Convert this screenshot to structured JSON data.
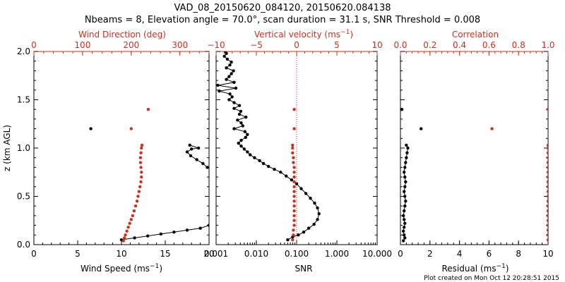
{
  "colors": {
    "black": "#000000",
    "red": "#c8321e"
  },
  "chart_data": {
    "type": "scatter",
    "title_line1": "VAD_08_20150620_084120, 20150620.084138",
    "title_line2": "Nbeams = 8, Elevation angle = 70.0°, scan duration = 31.1 s, SNR Threshold = 0.008",
    "footer": "Plot created on Mon Oct 12 20:28:51 2015",
    "ylabel": "z (km AGL)",
    "ylim": [
      0.0,
      2.0
    ],
    "yticks": [
      "0.0",
      "0.5",
      "1.0",
      "1.5",
      "2.0"
    ],
    "panels": [
      {
        "name": "wind",
        "xlabel": "Wind Speed (ms",
        "xlabel_sup": "−1",
        "xlabel_close": ")",
        "xlim": [
          0,
          20
        ],
        "xticks": [
          "0",
          "5",
          "10",
          "15",
          "20"
        ],
        "top_label": "Wind Direction (deg",
        "top_label_close": ")",
        "top_lim": [
          0,
          360
        ],
        "top_ticks": [
          "0",
          "100",
          "200",
          "300"
        ],
        "speed": [
          [
            10.0,
            0.05
          ],
          [
            11.5,
            0.07
          ],
          [
            13.0,
            0.09
          ],
          [
            14.5,
            0.11
          ],
          [
            16.0,
            0.13
          ],
          [
            17.5,
            0.15
          ],
          [
            19.0,
            0.17
          ],
          [
            20.0,
            0.2
          ],
          [
            19.8,
            0.8
          ],
          [
            19.3,
            0.84
          ],
          [
            18.6,
            0.88
          ],
          [
            17.9,
            0.92
          ],
          [
            17.5,
            0.96
          ],
          [
            18.0,
            0.99
          ],
          [
            18.8,
            1.0
          ],
          [
            17.8,
            1.03
          ],
          [
            6.5,
            1.2
          ]
        ],
        "direction": [
          [
            184,
            0.04
          ],
          [
            186,
            0.07
          ],
          [
            188,
            0.1
          ],
          [
            191,
            0.14
          ],
          [
            194,
            0.18
          ],
          [
            197,
            0.22
          ],
          [
            200,
            0.26
          ],
          [
            203,
            0.3
          ],
          [
            206,
            0.35
          ],
          [
            209,
            0.4
          ],
          [
            212,
            0.45
          ],
          [
            214,
            0.5
          ],
          [
            216,
            0.55
          ],
          [
            218,
            0.6
          ],
          [
            220,
            0.65
          ],
          [
            221,
            0.7
          ],
          [
            221,
            0.75
          ],
          [
            220,
            0.8
          ],
          [
            219,
            0.85
          ],
          [
            219,
            0.9
          ],
          [
            220,
            0.95
          ],
          [
            221,
            1.0
          ],
          [
            222,
            1.03
          ],
          [
            200,
            1.2
          ],
          [
            235,
            1.4
          ]
        ]
      },
      {
        "name": "snr",
        "xlabel": "SNR",
        "xlim": [
          0.001,
          10.0
        ],
        "xscale": "log",
        "xticks": [
          "0.001",
          "0.010",
          "0.100",
          "1.000",
          "10.000"
        ],
        "top_label": "Vertical velocity (ms",
        "top_label_sup": "−1",
        "top_label_close": ")",
        "top_lim": [
          -10,
          10
        ],
        "top_ticks": [
          "−10",
          "−5",
          "0",
          "5",
          "10"
        ],
        "snr": [
          [
            0.06,
            0.05
          ],
          [
            0.08,
            0.08
          ],
          [
            0.11,
            0.1
          ],
          [
            0.15,
            0.13
          ],
          [
            0.2,
            0.17
          ],
          [
            0.27,
            0.21
          ],
          [
            0.33,
            0.26
          ],
          [
            0.36,
            0.32
          ],
          [
            0.33,
            0.38
          ],
          [
            0.28,
            0.43
          ],
          [
            0.22,
            0.48
          ],
          [
            0.17,
            0.53
          ],
          [
            0.13,
            0.58
          ],
          [
            0.1,
            0.63
          ],
          [
            0.075,
            0.67
          ],
          [
            0.055,
            0.71
          ],
          [
            0.04,
            0.75
          ],
          [
            0.028,
            0.78
          ],
          [
            0.02,
            0.81
          ],
          [
            0.015,
            0.84
          ],
          [
            0.012,
            0.87
          ],
          [
            0.009,
            0.9
          ],
          [
            0.007,
            0.93
          ],
          [
            0.006,
            0.96
          ],
          [
            0.005,
            0.99
          ],
          [
            0.0042,
            1.02
          ],
          [
            0.0036,
            1.05
          ],
          [
            0.0042,
            1.08
          ],
          [
            0.0054,
            1.11
          ],
          [
            0.006,
            1.14
          ],
          [
            0.0052,
            1.17
          ],
          [
            0.0028,
            1.2
          ],
          [
            0.0046,
            1.23
          ],
          [
            0.0042,
            1.26
          ],
          [
            0.0034,
            1.29
          ],
          [
            0.0055,
            1.32
          ],
          [
            0.0038,
            1.35
          ],
          [
            0.0041,
            1.38
          ],
          [
            0.0028,
            1.41
          ],
          [
            0.0038,
            1.44
          ],
          [
            0.0028,
            1.47
          ],
          [
            0.0021,
            1.5
          ],
          [
            0.0025,
            1.53
          ],
          [
            0.0022,
            1.56
          ],
          [
            0.0012,
            1.59
          ],
          [
            0.0031,
            1.62
          ],
          [
            0.0011,
            1.65
          ],
          [
            0.0028,
            1.68
          ],
          [
            0.0018,
            1.71
          ],
          [
            0.0021,
            1.74
          ],
          [
            0.0024,
            1.77
          ],
          [
            0.0027,
            1.8
          ],
          [
            0.0018,
            1.83
          ],
          [
            0.0022,
            1.86
          ],
          [
            0.0024,
            1.89
          ],
          [
            0.0019,
            1.92
          ],
          [
            0.0016,
            1.95
          ],
          [
            0.0018,
            1.98
          ],
          [
            0.0017,
            2.0
          ]
        ],
        "vvel": [
          [
            -0.5,
            0.05
          ],
          [
            -0.4,
            0.1
          ],
          [
            -0.4,
            0.15
          ],
          [
            -0.3,
            0.2
          ],
          [
            -0.3,
            0.25
          ],
          [
            -0.3,
            0.3
          ],
          [
            -0.3,
            0.35
          ],
          [
            -0.3,
            0.4
          ],
          [
            -0.3,
            0.45
          ],
          [
            -0.3,
            0.5
          ],
          [
            -0.3,
            0.55
          ],
          [
            -0.3,
            0.6
          ],
          [
            -0.3,
            0.65
          ],
          [
            -0.3,
            0.7
          ],
          [
            -0.3,
            0.75
          ],
          [
            -0.3,
            0.8
          ],
          [
            -0.4,
            0.85
          ],
          [
            -0.4,
            0.9
          ],
          [
            -0.5,
            0.95
          ],
          [
            -0.5,
            1.0
          ],
          [
            -0.5,
            1.03
          ],
          [
            -0.3,
            1.2
          ],
          [
            -0.3,
            1.4
          ]
        ]
      },
      {
        "name": "residual",
        "xlabel": "Residual (ms",
        "xlabel_sup": "−1",
        "xlabel_close": ")",
        "xlim": [
          0,
          10
        ],
        "xticks": [
          "0",
          "2",
          "4",
          "6",
          "8",
          "10"
        ],
        "top_label": "Correlation",
        "top_lim": [
          0.0,
          1.0
        ],
        "top_ticks": [
          "0.0",
          "0.2",
          "0.4",
          "0.6",
          "0.8",
          "1.0"
        ],
        "residual": [
          [
            0.2,
            0.04
          ],
          [
            0.3,
            0.07
          ],
          [
            0.25,
            0.1
          ],
          [
            0.2,
            0.14
          ],
          [
            0.25,
            0.18
          ],
          [
            0.3,
            0.22
          ],
          [
            0.25,
            0.26
          ],
          [
            0.2,
            0.3
          ],
          [
            0.25,
            0.35
          ],
          [
            0.3,
            0.4
          ],
          [
            0.35,
            0.45
          ],
          [
            0.3,
            0.5
          ],
          [
            0.25,
            0.55
          ],
          [
            0.3,
            0.6
          ],
          [
            0.35,
            0.65
          ],
          [
            0.3,
            0.7
          ],
          [
            0.25,
            0.75
          ],
          [
            0.3,
            0.8
          ],
          [
            0.35,
            0.85
          ],
          [
            0.4,
            0.9
          ],
          [
            0.45,
            0.95
          ],
          [
            0.5,
            1.0
          ],
          [
            0.4,
            1.03
          ],
          [
            1.4,
            1.2
          ],
          [
            0.1,
            1.4
          ]
        ],
        "correlation": [
          [
            1.0,
            0.05
          ],
          [
            1.0,
            0.1
          ],
          [
            1.0,
            0.15
          ],
          [
            1.0,
            0.2
          ],
          [
            1.0,
            0.25
          ],
          [
            1.0,
            0.3
          ],
          [
            1.0,
            0.35
          ],
          [
            1.0,
            0.4
          ],
          [
            1.0,
            0.45
          ],
          [
            1.0,
            0.5
          ],
          [
            1.0,
            0.55
          ],
          [
            1.0,
            0.6
          ],
          [
            1.0,
            0.65
          ],
          [
            1.0,
            0.7
          ],
          [
            1.0,
            0.75
          ],
          [
            1.0,
            0.8
          ],
          [
            1.0,
            0.85
          ],
          [
            1.0,
            0.9
          ],
          [
            1.0,
            0.95
          ],
          [
            1.0,
            1.0
          ],
          [
            1.0,
            1.03
          ],
          [
            0.62,
            1.2
          ],
          [
            1.0,
            1.4
          ]
        ],
        "reference_x": 1.0
      }
    ],
    "snr_reference_vvel": 0
  }
}
